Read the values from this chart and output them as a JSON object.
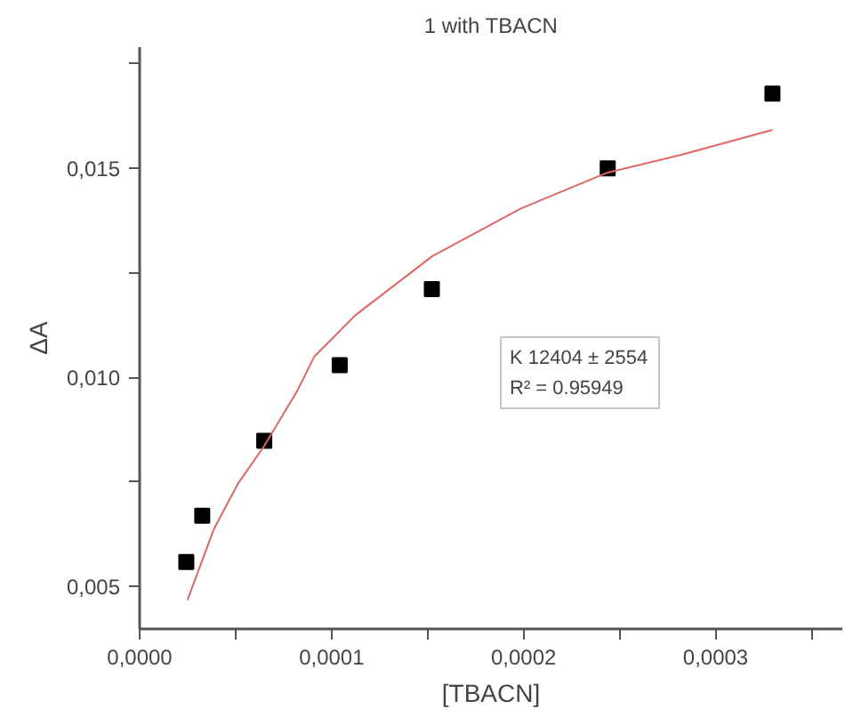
{
  "chart_data": {
    "type": "scatter",
    "title": "1 with TBACN",
    "xlabel": "[TBACN]",
    "ylabel": "ΔA",
    "annotations": [
      "K 12404 ± 2554",
      "R² = 0.95949"
    ],
    "series": [
      {
        "color": "#000000",
        "marker": "square",
        "x": [
          2.43e-05,
          3.26e-05,
          6.49e-05,
          0.0001042,
          0.0001522,
          0.0002438,
          0.0003296
        ],
        "values": [
          0.00558,
          0.00669,
          0.00848,
          0.01029,
          0.01211,
          0.015,
          0.01679
        ]
      },
      {
        "type": "line",
        "color": "#e06666",
        "marker": "none",
        "x": [
          2.49e-05,
          3.87e-05,
          5.1e-05,
          6.49e-05,
          8.18e-05,
          9.1e-05,
          0.0001125,
          0.0001525,
          0.0001986,
          0.0002438,
          0.0002817,
          0.0003296
        ],
        "values": [
          0.00467,
          0.00637,
          0.00744,
          0.00836,
          0.00965,
          0.0105,
          0.01149,
          0.0129,
          0.01404,
          0.0149,
          0.01532,
          0.01592
        ]
      }
    ],
    "xlim": [
      0,
      0.000366
    ],
    "ylim": [
      0.00398,
      0.0179
    ],
    "xticks": [
      {
        "value": 0,
        "label": "0,0000"
      },
      {
        "value": 5e-05,
        "label": null
      },
      {
        "value": 0.0001,
        "label": "0,0001"
      },
      {
        "value": 0.00015,
        "label": null
      },
      {
        "value": 0.0002,
        "label": "0,0002"
      },
      {
        "value": 0.00025,
        "label": null
      },
      {
        "value": 0.0003,
        "label": "0,0003"
      },
      {
        "value": 0.00035,
        "label": null
      }
    ],
    "yticks": [
      {
        "value": 0.005,
        "label": "0,005"
      },
      {
        "value": 0.0075,
        "label": null
      },
      {
        "value": 0.01,
        "label": "0,010"
      },
      {
        "value": 0.0125,
        "label": null
      },
      {
        "value": 0.015,
        "label": "0,015"
      },
      {
        "value": 0.0175,
        "label": null
      }
    ],
    "grid": false
  }
}
